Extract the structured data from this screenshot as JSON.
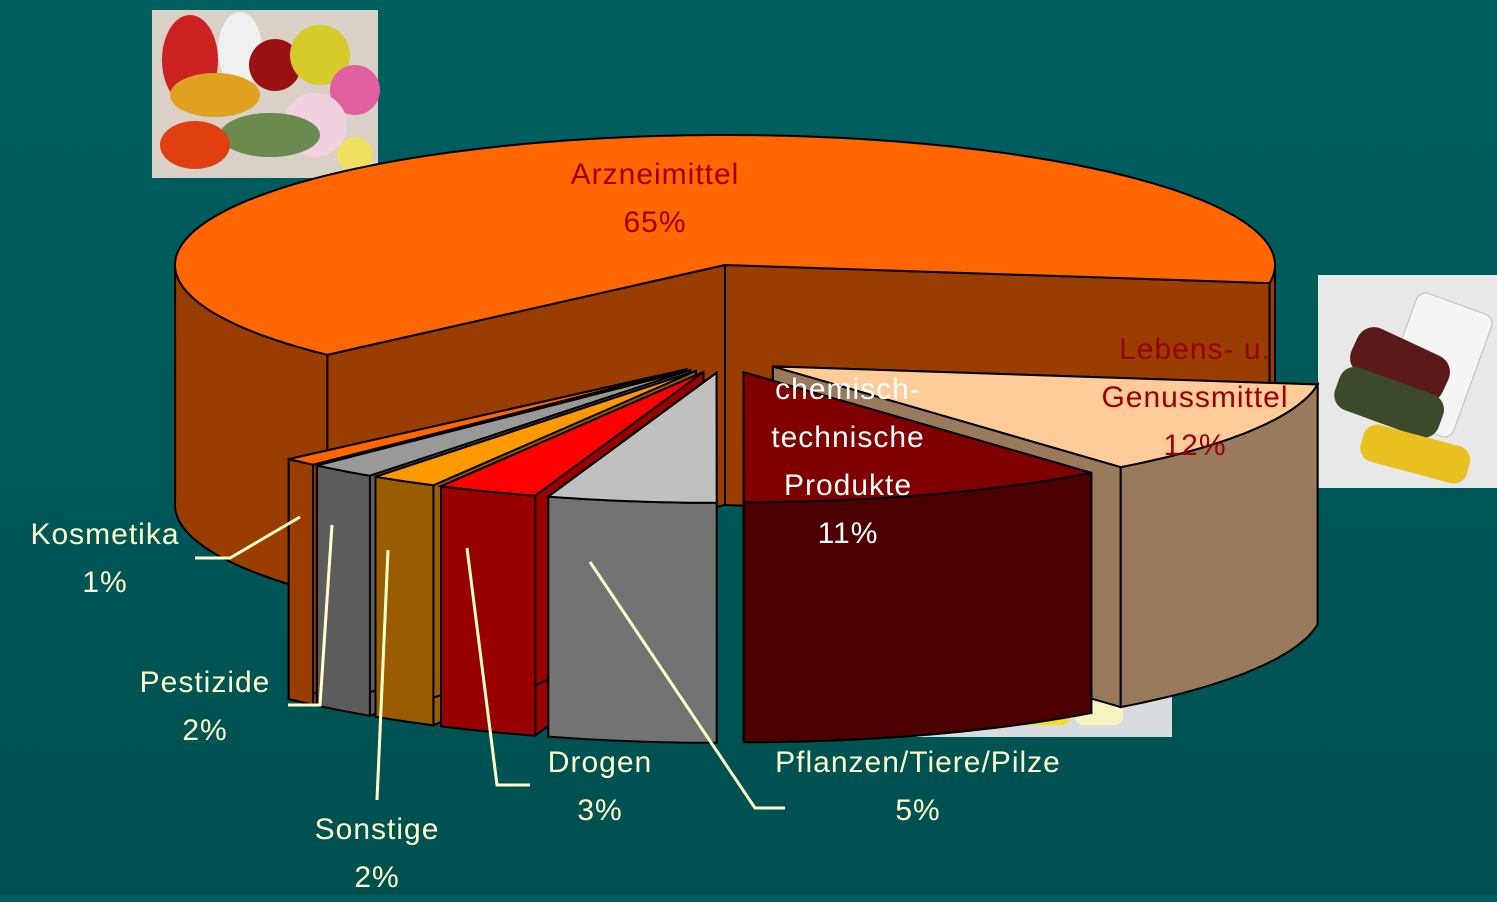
{
  "chart_data": {
    "type": "pie",
    "categories": [
      "Lebens- u. Genussmittel",
      "chemisch-technische Produkte",
      "Pflanzen/Tiere/Pilze",
      "Drogen",
      "Sonstige",
      "Pestizide",
      "Kosmetika",
      "Arzneimittel"
    ],
    "values": [
      12,
      11,
      5,
      3,
      2,
      2,
      1,
      65
    ],
    "value_labels": [
      "12%",
      "11%",
      "5%",
      "3%",
      "2%",
      "2%",
      "1%",
      "65%"
    ],
    "colors": [
      "#ffcc99",
      "#800000",
      "#c0c0c0",
      "#ff0000",
      "#ff9900",
      "#999999",
      "#ff6600",
      "#ff6600"
    ]
  }
}
